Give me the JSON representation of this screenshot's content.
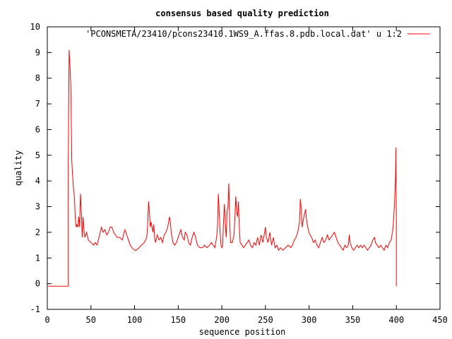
{
  "chart_data": {
    "type": "line",
    "title": "consensus based quality prediction",
    "xlabel": "sequence position",
    "ylabel": "quality",
    "xlim": [
      0,
      450
    ],
    "ylim": [
      -1,
      10
    ],
    "xticks": [
      0,
      50,
      100,
      150,
      200,
      250,
      300,
      350,
      400,
      450
    ],
    "yticks": [
      -1,
      0,
      1,
      2,
      3,
      4,
      5,
      6,
      7,
      8,
      9,
      10
    ],
    "grid": false,
    "legend_position": "top-right",
    "series": [
      {
        "name": "'PCONSMETA/23410/pcons23410.1WS9_A.ffas.8.pdb.local.dat' u 1:2",
        "color": "#ff0000",
        "points": [
          [
            1,
            -0.1
          ],
          [
            24,
            -0.1
          ],
          [
            24,
            4.5
          ],
          [
            25,
            9.1
          ],
          [
            26,
            8.5
          ],
          [
            27,
            7.6
          ],
          [
            28,
            4.8
          ],
          [
            29,
            4.2
          ],
          [
            30,
            3.7
          ],
          [
            31,
            3.4
          ],
          [
            32,
            2.6
          ],
          [
            33,
            2.2
          ],
          [
            34,
            2.3
          ],
          [
            35,
            2.2
          ],
          [
            36,
            2.6
          ],
          [
            37,
            2.2
          ],
          [
            38,
            3.5
          ],
          [
            39,
            2.8
          ],
          [
            40,
            1.8
          ],
          [
            41,
            2.6
          ],
          [
            42,
            2.1
          ],
          [
            43,
            1.8
          ],
          [
            45,
            2.0
          ],
          [
            47,
            1.7
          ],
          [
            50,
            1.6
          ],
          [
            53,
            1.5
          ],
          [
            55,
            1.6
          ],
          [
            57,
            1.5
          ],
          [
            60,
            1.9
          ],
          [
            62,
            2.2
          ],
          [
            64,
            2.0
          ],
          [
            66,
            2.1
          ],
          [
            68,
            1.9
          ],
          [
            70,
            2.0
          ],
          [
            72,
            2.2
          ],
          [
            74,
            2.2
          ],
          [
            76,
            2.0
          ],
          [
            78,
            1.9
          ],
          [
            80,
            1.8
          ],
          [
            83,
            1.8
          ],
          [
            86,
            1.7
          ],
          [
            88,
            2.0
          ],
          [
            89,
            2.1
          ],
          [
            91,
            1.9
          ],
          [
            93,
            1.7
          ],
          [
            95,
            1.5
          ],
          [
            97,
            1.4
          ],
          [
            100,
            1.3
          ],
          [
            102,
            1.3
          ],
          [
            105,
            1.4
          ],
          [
            108,
            1.5
          ],
          [
            111,
            1.6
          ],
          [
            114,
            1.8
          ],
          [
            115,
            2.3
          ],
          [
            116,
            3.2
          ],
          [
            117,
            2.8
          ],
          [
            118,
            2.2
          ],
          [
            119,
            2.4
          ],
          [
            120,
            2.2
          ],
          [
            121,
            2.0
          ],
          [
            122,
            2.3
          ],
          [
            123,
            1.8
          ],
          [
            124,
            1.6
          ],
          [
            126,
            1.9
          ],
          [
            128,
            1.7
          ],
          [
            130,
            1.8
          ],
          [
            132,
            1.6
          ],
          [
            134,
            1.9
          ],
          [
            136,
            2.0
          ],
          [
            138,
            2.2
          ],
          [
            140,
            2.6
          ],
          [
            141,
            2.4
          ],
          [
            142,
            2.0
          ],
          [
            144,
            1.6
          ],
          [
            146,
            1.5
          ],
          [
            148,
            1.6
          ],
          [
            150,
            1.8
          ],
          [
            152,
            2.0
          ],
          [
            153,
            2.1
          ],
          [
            155,
            1.8
          ],
          [
            157,
            1.7
          ],
          [
            158,
            2.0
          ],
          [
            160,
            1.9
          ],
          [
            162,
            1.6
          ],
          [
            164,
            1.5
          ],
          [
            166,
            1.8
          ],
          [
            168,
            2.0
          ],
          [
            170,
            1.8
          ],
          [
            172,
            1.5
          ],
          [
            175,
            1.4
          ],
          [
            178,
            1.4
          ],
          [
            180,
            1.5
          ],
          [
            183,
            1.4
          ],
          [
            186,
            1.5
          ],
          [
            188,
            1.6
          ],
          [
            190,
            1.5
          ],
          [
            192,
            1.4
          ],
          [
            194,
            1.8
          ],
          [
            195,
            2.2
          ],
          [
            196,
            3.5
          ],
          [
            197,
            2.8
          ],
          [
            198,
            2.0
          ],
          [
            199,
            1.5
          ],
          [
            200,
            1.4
          ],
          [
            201,
            1.5
          ],
          [
            202,
            2.5
          ],
          [
            203,
            3.1
          ],
          [
            204,
            2.3
          ],
          [
            205,
            1.8
          ],
          [
            206,
            2.8
          ],
          [
            207,
            3.0
          ],
          [
            208,
            3.9
          ],
          [
            209,
            2.4
          ],
          [
            210,
            1.6
          ],
          [
            212,
            1.6
          ],
          [
            214,
            1.9
          ],
          [
            215,
            2.6
          ],
          [
            216,
            3.4
          ],
          [
            217,
            2.8
          ],
          [
            218,
            2.6
          ],
          [
            219,
            3.2
          ],
          [
            220,
            2.2
          ],
          [
            221,
            1.6
          ],
          [
            223,
            1.5
          ],
          [
            225,
            1.4
          ],
          [
            227,
            1.5
          ],
          [
            229,
            1.6
          ],
          [
            231,
            1.7
          ],
          [
            233,
            1.5
          ],
          [
            235,
            1.4
          ],
          [
            237,
            1.6
          ],
          [
            239,
            1.5
          ],
          [
            241,
            1.8
          ],
          [
            243,
            1.5
          ],
          [
            245,
            1.9
          ],
          [
            247,
            1.6
          ],
          [
            249,
            2.0
          ],
          [
            250,
            2.2
          ],
          [
            251,
            1.8
          ],
          [
            253,
            1.6
          ],
          [
            255,
            2.0
          ],
          [
            257,
            1.5
          ],
          [
            259,
            1.8
          ],
          [
            261,
            1.4
          ],
          [
            263,
            1.5
          ],
          [
            265,
            1.3
          ],
          [
            267,
            1.4
          ],
          [
            270,
            1.3
          ],
          [
            273,
            1.4
          ],
          [
            276,
            1.5
          ],
          [
            279,
            1.4
          ],
          [
            281,
            1.5
          ],
          [
            283,
            1.7
          ],
          [
            285,
            1.8
          ],
          [
            287,
            2.0
          ],
          [
            289,
            2.4
          ],
          [
            290,
            3.3
          ],
          [
            291,
            2.9
          ],
          [
            292,
            2.2
          ],
          [
            293,
            2.4
          ],
          [
            294,
            2.6
          ],
          [
            296,
            2.9
          ],
          [
            297,
            2.5
          ],
          [
            299,
            2.1
          ],
          [
            301,
            1.9
          ],
          [
            303,
            1.8
          ],
          [
            305,
            1.6
          ],
          [
            307,
            1.7
          ],
          [
            309,
            1.5
          ],
          [
            311,
            1.4
          ],
          [
            313,
            1.6
          ],
          [
            315,
            1.8
          ],
          [
            317,
            1.6
          ],
          [
            319,
            1.7
          ],
          [
            321,
            1.9
          ],
          [
            323,
            1.7
          ],
          [
            325,
            1.8
          ],
          [
            327,
            1.9
          ],
          [
            329,
            2.0
          ],
          [
            331,
            1.8
          ],
          [
            333,
            1.6
          ],
          [
            335,
            1.5
          ],
          [
            337,
            1.4
          ],
          [
            339,
            1.3
          ],
          [
            341,
            1.5
          ],
          [
            343,
            1.4
          ],
          [
            345,
            1.5
          ],
          [
            346,
            1.9
          ],
          [
            347,
            1.6
          ],
          [
            349,
            1.4
          ],
          [
            351,
            1.3
          ],
          [
            353,
            1.4
          ],
          [
            355,
            1.5
          ],
          [
            357,
            1.4
          ],
          [
            359,
            1.5
          ],
          [
            361,
            1.4
          ],
          [
            363,
            1.5
          ],
          [
            365,
            1.4
          ],
          [
            367,
            1.3
          ],
          [
            369,
            1.4
          ],
          [
            371,
            1.5
          ],
          [
            373,
            1.7
          ],
          [
            375,
            1.8
          ],
          [
            376,
            1.6
          ],
          [
            378,
            1.5
          ],
          [
            380,
            1.4
          ],
          [
            382,
            1.5
          ],
          [
            384,
            1.4
          ],
          [
            386,
            1.3
          ],
          [
            388,
            1.5
          ],
          [
            390,
            1.4
          ],
          [
            392,
            1.6
          ],
          [
            394,
            1.7
          ],
          [
            396,
            2.1
          ],
          [
            397,
            2.6
          ],
          [
            398,
            3.2
          ],
          [
            399,
            4.1
          ],
          [
            399.5,
            5.3
          ],
          [
            400,
            2.5
          ],
          [
            400,
            -0.1
          ]
        ]
      }
    ]
  }
}
